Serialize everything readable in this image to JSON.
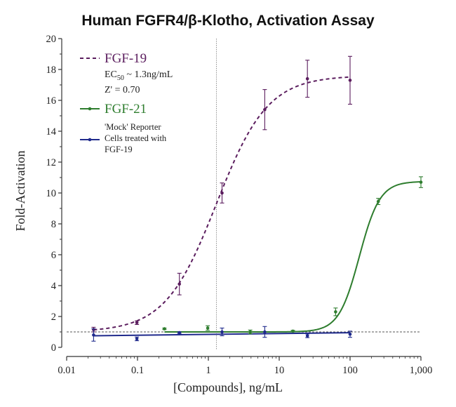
{
  "chart_data": {
    "type": "line",
    "title": "Human FGFR4/β-Klotho, Activation Assay",
    "xlabel": "[Compounds], ng/mL",
    "ylabel": "Fold-Activation",
    "xscale": "log",
    "xlim": [
      0.01,
      1000
    ],
    "ylim": [
      0,
      20
    ],
    "xticks": [
      {
        "value": 0.01,
        "label": "0.01"
      },
      {
        "value": 0.1,
        "label": "0.1"
      },
      {
        "value": 1,
        "label": "1"
      },
      {
        "value": 10,
        "label": "10"
      },
      {
        "value": 100,
        "label": "100"
      },
      {
        "value": 1000,
        "label": "1,000"
      }
    ],
    "yticks": [
      {
        "value": 0,
        "label": "0"
      },
      {
        "value": 2,
        "label": "2"
      },
      {
        "value": 4,
        "label": "4"
      },
      {
        "value": 6,
        "label": "6"
      },
      {
        "value": 8,
        "label": "8"
      },
      {
        "value": 10,
        "label": "10"
      },
      {
        "value": 12,
        "label": "12"
      },
      {
        "value": 14,
        "label": "14"
      },
      {
        "value": 16,
        "label": "16"
      },
      {
        "value": 18,
        "label": "18"
      },
      {
        "value": 20,
        "label": "20"
      }
    ],
    "reference_lines": {
      "vertical_x": 1.3,
      "horizontal_y": 1.0
    },
    "legend": {
      "placement": "top-left",
      "entries": [
        {
          "name": "FGF-19",
          "notes": {
            "ec50_prefix": "EC",
            "ec50_sub": "50",
            "ec50_suffix": " ~ 1.3ng/mL",
            "zprime": "Z' = 0.70"
          }
        },
        {
          "name": "FGF-21"
        },
        {
          "name": "'Mock' Reporter",
          "lines": [
            "'Mock' Reporter",
            "Cells treated with",
            "FGF-19"
          ]
        }
      ]
    },
    "series": [
      {
        "name": "FGF-19",
        "color": "#5b1d5e",
        "dash": "dashed",
        "fit": {
          "bottom": 1.0,
          "top": 17.6,
          "ec50": 1.3,
          "hill": 1.2,
          "x_from": 0.024,
          "x_to": 100
        },
        "points": [
          {
            "x": 0.024,
            "y": 1.15,
            "err": 0.15
          },
          {
            "x": 0.098,
            "y": 1.6,
            "err": 0.12
          },
          {
            "x": 0.39,
            "y": 4.1,
            "err": 0.7
          },
          {
            "x": 1.56,
            "y": 10.0,
            "err": 0.65
          },
          {
            "x": 6.25,
            "y": 15.4,
            "err": 1.3
          },
          {
            "x": 25,
            "y": 17.4,
            "err": 1.2
          },
          {
            "x": 100,
            "y": 17.3,
            "err": 1.55
          }
        ]
      },
      {
        "name": "FGF-21",
        "color": "#2e7d2e",
        "dash": "solid",
        "fit": {
          "bottom": 1.0,
          "top": 10.75,
          "ec50": 135,
          "hill": 3.0,
          "x_from": 0.24,
          "x_to": 1000
        },
        "points": [
          {
            "x": 0.24,
            "y": 1.2,
            "err": 0.05
          },
          {
            "x": 0.98,
            "y": 1.25,
            "err": 0.15
          },
          {
            "x": 3.9,
            "y": 1.0,
            "err": 0.12
          },
          {
            "x": 15.6,
            "y": 1.05,
            "err": 0.05
          },
          {
            "x": 62.5,
            "y": 2.3,
            "err": 0.25
          },
          {
            "x": 250,
            "y": 9.45,
            "err": 0.2
          },
          {
            "x": 1000,
            "y": 10.7,
            "err": 0.35
          }
        ]
      },
      {
        "name": "'Mock' Reporter Cells treated with FGF-19",
        "color": "#1f2a8c",
        "dash": "solid",
        "fit": {
          "linear_from": {
            "x": 0.024,
            "y": 0.75
          },
          "linear_to": {
            "x": 100,
            "y": 0.95
          }
        },
        "points": [
          {
            "x": 0.024,
            "y": 0.8,
            "err": 0.4
          },
          {
            "x": 0.098,
            "y": 0.55,
            "err": 0.12
          },
          {
            "x": 0.39,
            "y": 0.95,
            "err": 0.05
          },
          {
            "x": 1.56,
            "y": 1.0,
            "err": 0.25
          },
          {
            "x": 6.25,
            "y": 1.0,
            "err": 0.35
          },
          {
            "x": 25,
            "y": 0.75,
            "err": 0.12
          },
          {
            "x": 100,
            "y": 0.85,
            "err": 0.2
          }
        ]
      }
    ]
  }
}
